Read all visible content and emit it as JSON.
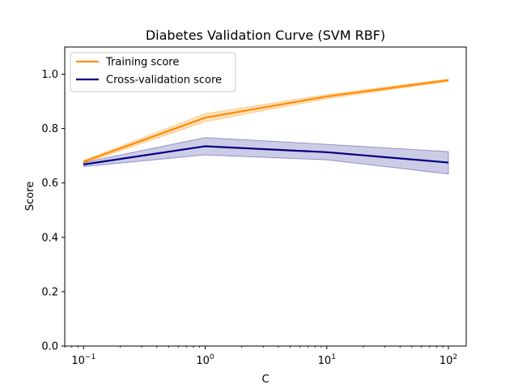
{
  "chart_data": {
    "type": "line",
    "title": "Diabetes Validation Curve (SVM RBF)",
    "xlabel": "C",
    "ylabel": "Score",
    "xscale": "log",
    "xlim": [
      0.07,
      140
    ],
    "ylim": [
      0,
      1.1
    ],
    "x": [
      0.1,
      1,
      10,
      100
    ],
    "x_ticks": [
      {
        "value": 0.1,
        "base": "10",
        "exp": "−1"
      },
      {
        "value": 1,
        "base": "10",
        "exp": "0"
      },
      {
        "value": 10,
        "base": "10",
        "exp": "1"
      },
      {
        "value": 100,
        "base": "10",
        "exp": "2"
      }
    ],
    "y_ticks": [
      "0.0",
      "0.2",
      "0.4",
      "0.6",
      "0.8",
      "1.0"
    ],
    "legend_position": "top-left",
    "grid": false,
    "series": [
      {
        "name": "Training score",
        "color": "#ff8c00",
        "values": [
          0.678,
          0.84,
          0.918,
          0.978
        ],
        "band_upper": [
          0.683,
          0.855,
          0.925,
          0.982
        ],
        "band_lower": [
          0.672,
          0.825,
          0.91,
          0.973
        ]
      },
      {
        "name": "Cross-validation score",
        "color": "#000080",
        "values": [
          0.668,
          0.735,
          0.713,
          0.675
        ],
        "band_upper": [
          0.675,
          0.767,
          0.742,
          0.715
        ],
        "band_lower": [
          0.66,
          0.703,
          0.685,
          0.633
        ]
      }
    ]
  }
}
